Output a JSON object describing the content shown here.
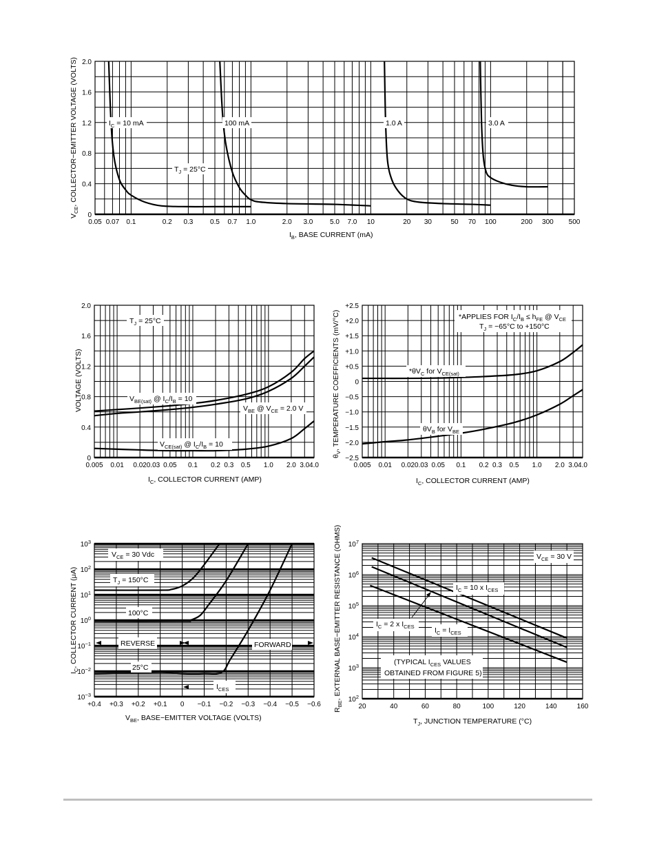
{
  "chart_data": [
    {
      "id": "fig1",
      "type": "line",
      "title": "",
      "xlabel": "I_B, BASE CURRENT (mA)",
      "ylabel": "V_CE, COLLECTOR-EMITTER VOLTAGE (VOLTS)",
      "xscale": "log",
      "xlim": [
        0.05,
        500
      ],
      "ylim": [
        0,
        2.0
      ],
      "xticks": [
        "0.05",
        "0.07",
        "0.1",
        "0.2",
        "0.3",
        "0.5",
        "0.7",
        "1.0",
        "2.0",
        "3.0",
        "5.0",
        "7.0",
        "10",
        "20",
        "30",
        "50",
        "70",
        "100",
        "200",
        "300",
        "500"
      ],
      "yticks": [
        "0",
        "0.4",
        "0.8",
        "1.2",
        "1.6",
        "2.0"
      ],
      "grid": true,
      "annotations": [
        "T_J = 25°C"
      ],
      "series": [
        {
          "name": "I_C = 10 mA",
          "x": [
            0.065,
            0.068,
            0.072,
            0.08,
            0.09,
            0.1,
            0.13,
            0.18,
            0.3,
            0.5,
            1.0
          ],
          "y": [
            2.0,
            1.2,
            0.75,
            0.45,
            0.32,
            0.25,
            0.16,
            0.11,
            0.1,
            0.1,
            0.1
          ]
        },
        {
          "name": "100 mA",
          "x": [
            0.55,
            0.58,
            0.62,
            0.7,
            0.8,
            0.9,
            1.0,
            1.2,
            2.0,
            5.0,
            10
          ],
          "y": [
            2.0,
            1.3,
            0.9,
            0.55,
            0.35,
            0.25,
            0.19,
            0.16,
            0.14,
            0.13,
            0.11
          ]
        },
        {
          "name": "1.0 A",
          "x": [
            13,
            13.3,
            13.8,
            15,
            17,
            20,
            25,
            40,
            70,
            100
          ],
          "y": [
            2.0,
            1.2,
            0.7,
            0.45,
            0.3,
            0.2,
            0.16,
            0.14,
            0.13,
            0.12
          ]
        },
        {
          "name": "3.0 A",
          "x": [
            82,
            84,
            87,
            92,
            100,
            120,
            150,
            200,
            300
          ],
          "y": [
            2.0,
            1.2,
            0.75,
            0.55,
            0.48,
            0.42,
            0.38,
            0.36,
            0.36
          ]
        }
      ]
    },
    {
      "id": "fig2",
      "type": "line",
      "title": "",
      "xlabel": "I_C, COLLECTOR CURRENT (AMP)",
      "ylabel": "VOLTAGE (VOLTS)",
      "xscale": "log",
      "xlim": [
        0.005,
        4.0
      ],
      "ylim": [
        0,
        2.0
      ],
      "xticks": [
        "0.005",
        "0.01",
        "0.02",
        "0.03",
        "0.05",
        "0.1",
        "0.2",
        "0.3",
        "0.5",
        "1.0",
        "2.0",
        "3.0",
        "4.0"
      ],
      "yticks": [
        "0",
        "0.4",
        "0.8",
        "1.2",
        "1.6",
        "2.0"
      ],
      "grid": true,
      "annotations": [
        "T_J = 25°C"
      ],
      "series": [
        {
          "name": "V_BE(sat) @ I_C/I_B = 10",
          "x": [
            0.005,
            0.01,
            0.02,
            0.05,
            0.1,
            0.2,
            0.5,
            1.0,
            2.0,
            3.0,
            4.0
          ],
          "y": [
            0.61,
            0.63,
            0.65,
            0.68,
            0.71,
            0.75,
            0.83,
            0.93,
            1.12,
            1.3,
            1.4
          ]
        },
        {
          "name": "V_BE @ V_CE = 2.0 V",
          "x": [
            0.005,
            0.01,
            0.02,
            0.05,
            0.1,
            0.2,
            0.5,
            1.0,
            2.0,
            3.0,
            4.0
          ],
          "y": [
            0.55,
            0.58,
            0.6,
            0.63,
            0.66,
            0.7,
            0.77,
            0.87,
            1.04,
            1.2,
            1.32
          ]
        },
        {
          "name": "V_CE(sat) @ I_C/I_B = 10",
          "x": [
            0.005,
            0.01,
            0.02,
            0.05,
            0.1,
            0.2,
            0.5,
            1.0,
            2.0,
            3.0,
            4.0
          ],
          "y": [
            0.12,
            0.11,
            0.1,
            0.09,
            0.09,
            0.09,
            0.11,
            0.15,
            0.25,
            0.38,
            0.48
          ]
        }
      ]
    },
    {
      "id": "fig3",
      "type": "line",
      "title": "",
      "xlabel": "I_C, COLLECTOR CURRENT (AMP)",
      "ylabel": "θ_V, TEMPERATURE COEFFICIENTS (mV/°C)",
      "xscale": "log",
      "xlim": [
        0.005,
        4.0
      ],
      "ylim": [
        -2.5,
        2.5
      ],
      "xticks": [
        "0.005",
        "0.01",
        "0.02",
        "0.03",
        "0.05",
        "0.1",
        "0.2",
        "0.3",
        "0.5",
        "1.0",
        "2.0",
        "3.0",
        "4.0"
      ],
      "yticks": [
        "-2.5",
        "-2.0",
        "-1.5",
        "-1.0",
        "-0.5",
        "0",
        "+0.5",
        "+1.0",
        "+1.5",
        "+2.0",
        "+2.5"
      ],
      "grid": true,
      "annotations": [
        "*APPLIES FOR I_C/I_B ≤ h_FE @ V_CE",
        "T_J = -65°C to +150°C"
      ],
      "series": [
        {
          "name": "*θV_C for V_CE(sat)",
          "x": [
            0.005,
            0.01,
            0.02,
            0.05,
            0.1,
            0.2,
            0.5,
            1.0,
            2.0,
            3.0,
            4.0
          ],
          "y": [
            0.1,
            0.1,
            0.1,
            0.11,
            0.13,
            0.16,
            0.22,
            0.35,
            0.65,
            0.95,
            1.2
          ]
        },
        {
          "name": "θV_B for V_BE",
          "x": [
            0.005,
            0.01,
            0.02,
            0.05,
            0.1,
            0.2,
            0.5,
            1.0,
            2.0,
            3.0,
            4.0
          ],
          "y": [
            -2.05,
            -1.98,
            -1.92,
            -1.8,
            -1.7,
            -1.57,
            -1.35,
            -1.1,
            -0.75,
            -0.47,
            -0.27
          ]
        }
      ]
    },
    {
      "id": "fig4",
      "type": "line",
      "title": "",
      "xlabel": "V_BE, BASE-EMITTER VOLTAGE (VOLTS)",
      "ylabel": "I_C, COLLECTOR CURRENT (μA)",
      "yscale": "log",
      "xlim": [
        0.4,
        -0.6
      ],
      "ylim": [
        0.001,
        1000
      ],
      "xticks": [
        "+0.4",
        "+0.3",
        "+0.2",
        "+0.1",
        "0",
        "-0.1",
        "-0.2",
        "-0.3",
        "-0.4",
        "-0.5",
        "-0.6"
      ],
      "yticks": [
        "10^-3",
        "10^-2",
        "10^-1",
        "10^0",
        "10^1",
        "10^2",
        "10^3"
      ],
      "grid": true,
      "annotations": [
        "V_CE = 30 Vdc",
        "REVERSE",
        "FORWARD",
        "I_CES"
      ],
      "series": [
        {
          "name": "T_J = 150°C",
          "x": [
            0.4,
            0.1,
            0.05,
            0.0,
            -0.05,
            -0.1,
            -0.17
          ],
          "y": [
            15,
            15,
            16,
            22,
            45,
            150,
            1000
          ]
        },
        {
          "name": "100°C",
          "x": [
            0.4,
            0.0,
            -0.03,
            -0.08,
            -0.12,
            -0.2,
            -0.3
          ],
          "y": [
            0.9,
            0.9,
            0.95,
            1.5,
            4,
            35,
            1000
          ]
        },
        {
          "name": "25°C",
          "x": [
            0.4,
            0.1,
            0.0,
            -0.1,
            -0.18,
            -0.22,
            -0.3,
            -0.4,
            -0.5
          ],
          "y": [
            0.008,
            0.009,
            0.008,
            0.008,
            0.009,
            0.03,
            0.4,
            15,
            1000
          ]
        }
      ]
    },
    {
      "id": "fig5",
      "type": "line",
      "title": "",
      "xlabel": "T_J, JUNCTION TEMPERATURE (°C)",
      "ylabel": "R_BE, EXTERNAL BASE-EMITTER RESISTANCE (OHMS)",
      "yscale": "log",
      "xlim": [
        20,
        160
      ],
      "ylim": [
        100,
        10000000
      ],
      "xticks": [
        "20",
        "40",
        "60",
        "80",
        "100",
        "120",
        "140",
        "160"
      ],
      "yticks": [
        "10^2",
        "10^3",
        "10^4",
        "10^5",
        "10^6",
        "10^7"
      ],
      "grid": true,
      "annotations": [
        "V_CE = 30 V",
        "(TYPICAL I_CES VALUES",
        "OBTAINED FROM FIGURE 5)"
      ],
      "series": [
        {
          "name": "I_C = 10 x I_CES",
          "x": [
            26,
            150
          ],
          "y": [
            3500000,
            9000
          ]
        },
        {
          "name": "I_C = 2 x I_CES",
          "x": [
            26,
            150
          ],
          "y": [
            1800000,
            4500
          ]
        },
        {
          "name": "I_C = I_CES",
          "x": [
            25,
            150
          ],
          "y": [
            450000,
            1500
          ]
        }
      ]
    }
  ],
  "fig1": {
    "ylabel_main": "V",
    "ylabel_sub": "CE",
    "ylabel_rest": ", COLLECTOR−EMITTER VOLTAGE (VOLTS)",
    "xlabel_main": "I",
    "xlabel_sub": "B",
    "xlabel_rest": ", BASE CURRENT (mA)",
    "label_10ma_pre": "I",
    "label_10ma_sub": "C",
    "label_10ma_post": " = 10 mA",
    "label_100ma": "100 mA",
    "label_1a": "1.0 A",
    "label_3a": "3.0 A",
    "tj_pre": "T",
    "tj_sub": "J",
    "tj_post": " = 25°C"
  },
  "fig2": {
    "ylabel": "VOLTAGE (VOLTS)",
    "xlabel_main": "I",
    "xlabel_sub": "C",
    "xlabel_rest": ", COLLECTOR CURRENT (AMP)",
    "tj_pre": "T",
    "tj_sub": "J",
    "tj_post": " = 25°C",
    "vbesat_a": "V",
    "vbesat_b": "BE(sat)",
    "vbesat_c": " @ I",
    "vbesat_d": "C",
    "vbesat_e": "/I",
    "vbesat_f": "B",
    "vbesat_g": " = 10",
    "vbe_a": "V",
    "vbe_b": "BE",
    "vbe_c": " @ V",
    "vbe_d": "CE",
    "vbe_e": " = 2.0 V",
    "vcesat_a": "V",
    "vcesat_b": "CE(sat)",
    "vcesat_c": " @ I",
    "vcesat_d": "C",
    "vcesat_e": "/I",
    "vcesat_f": "B",
    "vcesat_g": " = 10"
  },
  "fig3": {
    "ylabel_a": "θ",
    "ylabel_b": "V",
    "ylabel_c": ", TEMPERATURE COEFFICIENTS (mV/°C)",
    "xlabel_main": "I",
    "xlabel_sub": "C",
    "xlabel_rest": ", COLLECTOR CURRENT (AMP)",
    "note1_a": "*APPLIES FOR I",
    "note1_b": "C",
    "note1_c": "/I",
    "note1_d": "B",
    "note1_e": " ≤ h",
    "note1_f": "FE",
    "note1_g": " @ V",
    "note1_h": "CE",
    "note2_a": "T",
    "note2_b": "J",
    "note2_c": " = −65°C to +150°C",
    "vc_a": "*θV",
    "vc_b": "C",
    "vc_c": " for V",
    "vc_d": "CE(sat)",
    "vb_a": "θV",
    "vb_b": "B",
    "vb_c": " for V",
    "vb_d": "BE"
  },
  "fig4": {
    "ylabel_a": "I",
    "ylabel_b": "C",
    "ylabel_c": ", COLLECTOR CURRENT (μA)",
    "xlabel_a": "V",
    "xlabel_b": "BE",
    "xlabel_c": ", BASE−EMITTER VOLTAGE (VOLTS)",
    "vce_a": "V",
    "vce_b": "CE",
    "vce_c": " = 30 Vdc",
    "tj_a": "T",
    "tj_b": "J",
    "tj_c": " = 150°C",
    "t100": "100°C",
    "t25": "25°C",
    "reverse": "REVERSE",
    "forward": "FORWARD",
    "ices_a": "I",
    "ices_b": "CES"
  },
  "fig5": {
    "ylabel_a": "R",
    "ylabel_b": "BE",
    "ylabel_c": ", EXTERNAL BASE−EMITTER RESISTANCE (OHMS)",
    "xlabel_a": "T",
    "xlabel_b": "J",
    "xlabel_c": ", JUNCTION TEMPERATURE (°C)",
    "vce_a": "V",
    "vce_b": "CE",
    "vce_c": " = 30 V",
    "l10_a": "I",
    "l10_b": "C",
    "l10_c": " = 10 x I",
    "l10_d": "CES",
    "l2_a": "I",
    "l2_b": "C",
    "l2_c": " = 2 x I",
    "l2_d": "CES",
    "l1_a": "I",
    "l1_b": "C",
    "l1_c": " = I",
    "l1_d": "CES",
    "typ1_a": "(TYPICAL I",
    "typ1_b": "CES",
    "typ1_c": " VALUES",
    "typ2": "OBTAINED FROM FIGURE 5)"
  }
}
